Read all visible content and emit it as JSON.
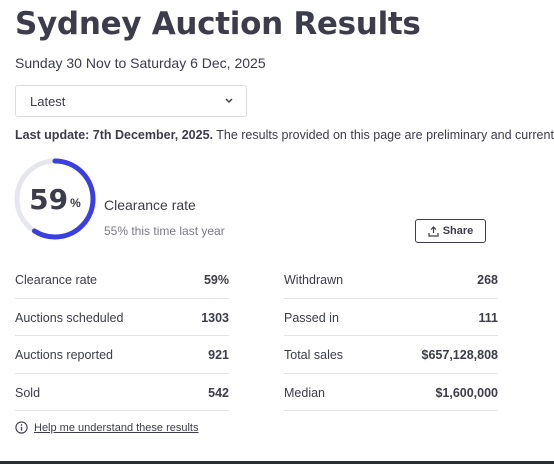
{
  "page": {
    "title": "Sydney Auction Results",
    "date_range": "Sunday 30 Nov to Saturday 6 Dec, 2025"
  },
  "period_select": {
    "value": "Latest"
  },
  "update": {
    "bold": "Last update: 7th December, 2025.",
    "text": " The results provided on this page are preliminary and current a"
  },
  "gauge": {
    "value": "59",
    "unit": "%",
    "fraction": 0.59,
    "label": "Clearance rate",
    "comparison": "55% this time last year",
    "colors": {
      "fill": "#3b3fe0",
      "track": "#e6e7ee"
    }
  },
  "share_button": {
    "label": "Share",
    "icon": "share-icon"
  },
  "stats_left": [
    {
      "label": "Clearance rate",
      "value": "59%"
    },
    {
      "label": "Auctions scheduled",
      "value": "1303"
    },
    {
      "label": "Auctions reported",
      "value": "921"
    },
    {
      "label": "Sold",
      "value": "542"
    }
  ],
  "stats_right": [
    {
      "label": "Withdrawn",
      "value": "268"
    },
    {
      "label": "Passed in",
      "value": "111"
    },
    {
      "label": "Total sales",
      "value": "$657,128,808"
    },
    {
      "label": "Median",
      "value": "$1,600,000"
    }
  ],
  "help": {
    "label": "Help me understand these results",
    "icon": "info-icon"
  }
}
